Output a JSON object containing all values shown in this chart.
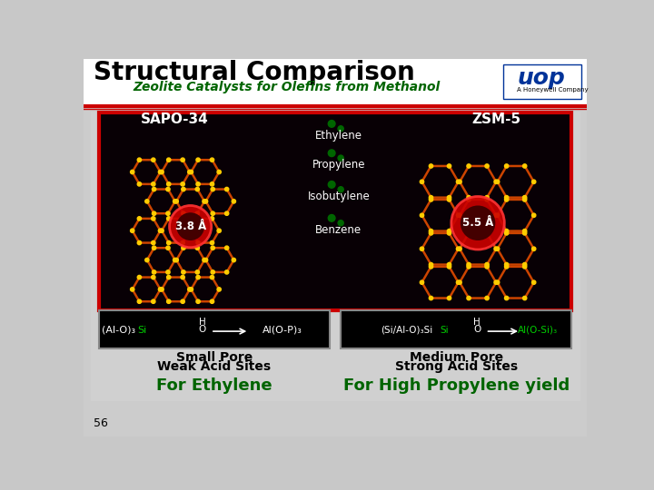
{
  "title": "Structural Comparison",
  "subtitle": "Zeolite Catalysts for Olefins from Methanol",
  "title_color": "#000000",
  "subtitle_color": "#006400",
  "main_image_border_color": "#cc0000",
  "left_label": "SAPO-34",
  "right_label": "ZSM-5",
  "left_pore_size": "3.8 Å",
  "right_pore_size": "5.5 Å",
  "molecules": [
    "Ethylene",
    "Propylene",
    "Isobutylene",
    "Benzene"
  ],
  "left_chem_left": "(Al-O)₃Si",
  "left_chem_right": "Al(O-P)₃",
  "right_chem_left": "(Si/Al-O)₃Si",
  "right_chem_right": "Al(O-Si)₃",
  "left_pore_type": "Small Pore",
  "left_acid_type": "Weak Acid Sites",
  "right_pore_type": "Medium Pore",
  "right_acid_type": "Strong Acid Sites",
  "bottom_left": "For Ethylene",
  "bottom_right": "For High Propylene yield",
  "bottom_color": "#006400",
  "page_number": "56",
  "red_line_color": "#cc0000",
  "chem_si_color": "#00cc00",
  "chem_al_color": "#00cc00",
  "ring_color": "#cc4400",
  "node_color": "#ffcc00",
  "uop_color": "#003399"
}
